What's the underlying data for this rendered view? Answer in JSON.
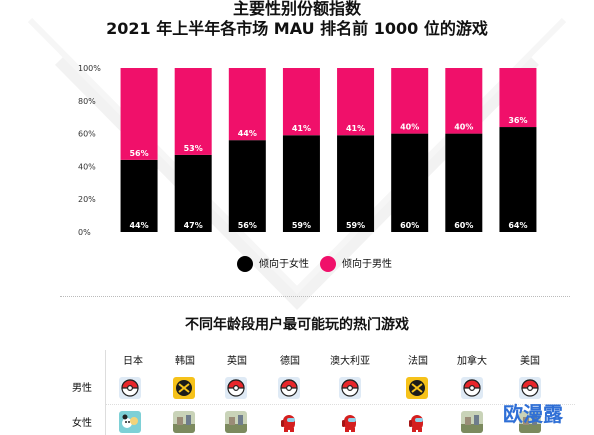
{
  "header": {
    "title": "主要性别份额指数",
    "subtitle": "2021 年上半年各市场 MAU 排名前 1000 位的游戏"
  },
  "chart_data": {
    "type": "bar",
    "stacked": true,
    "categories": [
      "",
      "",
      "",
      "",
      "",
      "",
      "",
      ""
    ],
    "ylim": [
      0,
      100
    ],
    "y_ticks": [
      "0%",
      "20%",
      "40%",
      "60%",
      "80%",
      "100%"
    ],
    "series": [
      {
        "name": "倾向于女性",
        "color": "#000000",
        "values": [
          44,
          47,
          56,
          59,
          59,
          60,
          60,
          64
        ],
        "labels": [
          "44%",
          "47%",
          "56%",
          "59%",
          "59%",
          "60%",
          "60%",
          "64%"
        ]
      },
      {
        "name": "倾向于男性",
        "color": "#f0106a",
        "values": [
          56,
          53,
          44,
          41,
          41,
          40,
          40,
          36
        ],
        "labels": [
          "56%",
          "53%",
          "44%",
          "41%",
          "41%",
          "40%",
          "40%",
          "36%"
        ]
      }
    ]
  },
  "legend": {
    "female_label": "倾向于女性",
    "male_label": "倾向于男性"
  },
  "section": {
    "title": "不同年龄段用户最可能玩的热门游戏",
    "countries": [
      "日本",
      "韩国",
      "英国",
      "德国",
      "澳大利亚",
      "法国",
      "加拿大",
      "美国"
    ],
    "row_labels": {
      "male": "男性",
      "female": "女性"
    },
    "male_icons": [
      "pokeball-icon",
      "crossed-guns-icon",
      "pokeball-icon",
      "pokeball-icon",
      "pokeball-icon",
      "crossed-guns-icon",
      "pokeball-icon",
      "pokeball-icon"
    ],
    "female_icons": [
      "cartoon-characters-icon",
      "scenery-game-icon",
      "scenery-game-icon",
      "among-us-crewmate-icon",
      "among-us-crewmate-icon",
      "among-us-crewmate-icon",
      "scenery-game-icon",
      "scenery-game-icon"
    ]
  },
  "watermark": {
    "text": "欧漫露"
  },
  "colors": {
    "female": "#000000",
    "male": "#f0106a",
    "pokeball_red": "#e8262b",
    "crewmate_red": "#d41f1f",
    "icon_yellow": "#f6c21a",
    "watermark_blue": "#2f6fd6"
  }
}
